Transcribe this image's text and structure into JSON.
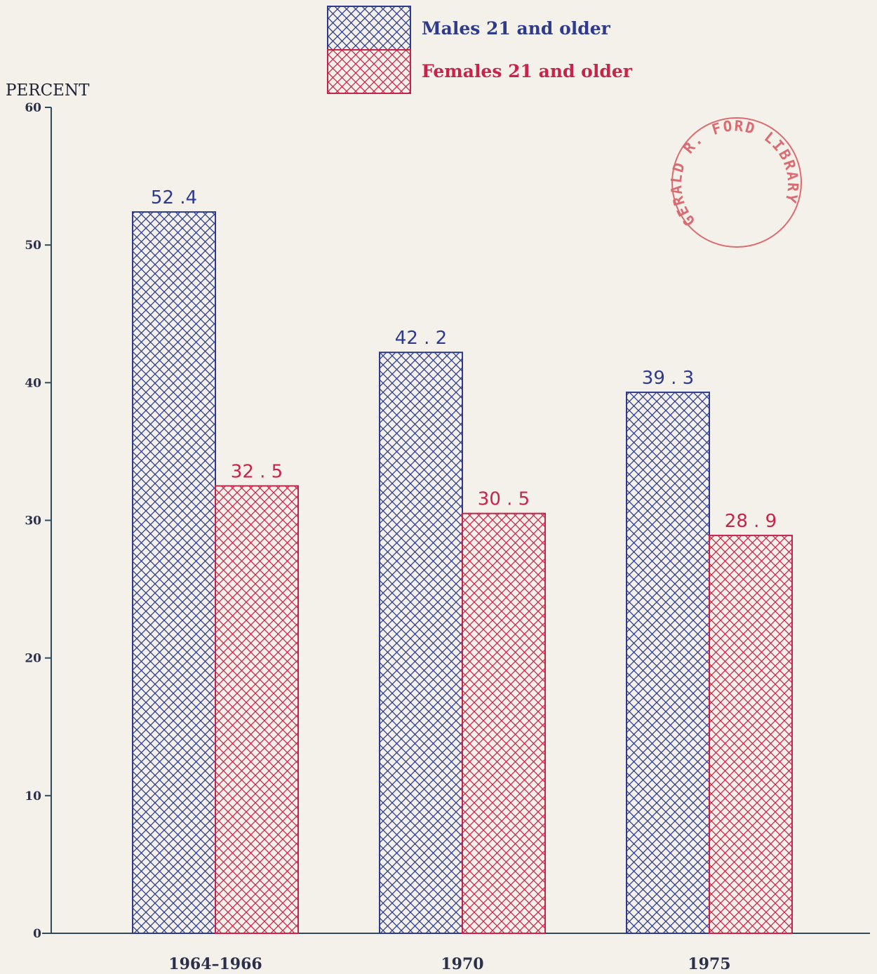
{
  "chart_data": {
    "type": "bar",
    "categories": [
      "1964–1966",
      "1970",
      "1975"
    ],
    "series": [
      {
        "name": "Males 21 and older",
        "values": [
          52.4,
          42.2,
          39.3
        ],
        "labels": [
          "52 .4",
          "42 . 2",
          "39 . 3"
        ],
        "color": "#2e3a8c"
      },
      {
        "name": "Females 21 and older",
        "values": [
          32.5,
          30.5,
          28.9
        ],
        "labels": [
          "32 . 5",
          "30 . 5",
          "28 . 9"
        ],
        "color": "#c8244a"
      }
    ],
    "title": "",
    "xlabel": "",
    "ylabel": "PERCENT",
    "ylim": [
      0,
      60
    ],
    "yticks": [
      0,
      10,
      20,
      30,
      40,
      50,
      60
    ],
    "grid": false,
    "legend_position": "top-center",
    "axis_color": "#2f4a5a"
  },
  "stamp": {
    "text": "GERALD R. FORD LIBRARY",
    "color": "#d9545c"
  }
}
